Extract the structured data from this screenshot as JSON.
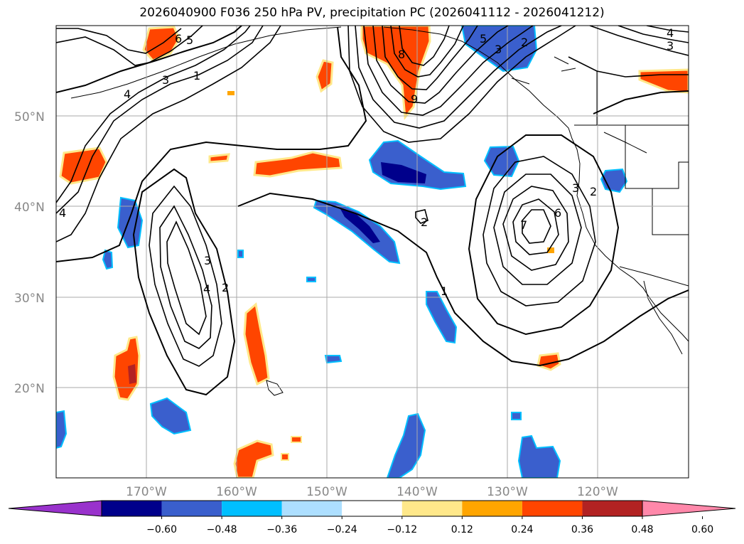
{
  "title": "2026040900 F036 250 hPa PV, precipitation PC (2026041112 - 2026041212)",
  "lat_labels": [
    "50°N",
    "40°N",
    "30°N",
    "20°N"
  ],
  "lon_labels": [
    "170°W",
    "160°W",
    "150°W",
    "140°W",
    "130°W",
    "120°W"
  ],
  "colorbar": {
    "ticks": [
      "−0.60",
      "−0.48",
      "−0.36",
      "−0.24",
      "−0.12",
      "0.12",
      "0.24",
      "0.36",
      "0.48",
      "0.60"
    ],
    "colors": [
      "#9932CC",
      "#00008B",
      "#3A5FCD",
      "#00BFFF",
      "#ADDFFF",
      "#FFFFFF",
      "#FFE88A",
      "#FFA500",
      "#FF4500",
      "#B22222",
      "#FF88AA"
    ]
  },
  "contour_labels": [
    "1",
    "2",
    "3",
    "4",
    "5",
    "6",
    "7",
    "8",
    "9"
  ],
  "colors": {
    "strong_neg": "#00008B",
    "neg": "#3A5FCD",
    "weak_neg": "#00BFFF",
    "weak_pos": "#FFE88A",
    "pos": "#FF4500",
    "strong_pos": "#B22222"
  }
}
